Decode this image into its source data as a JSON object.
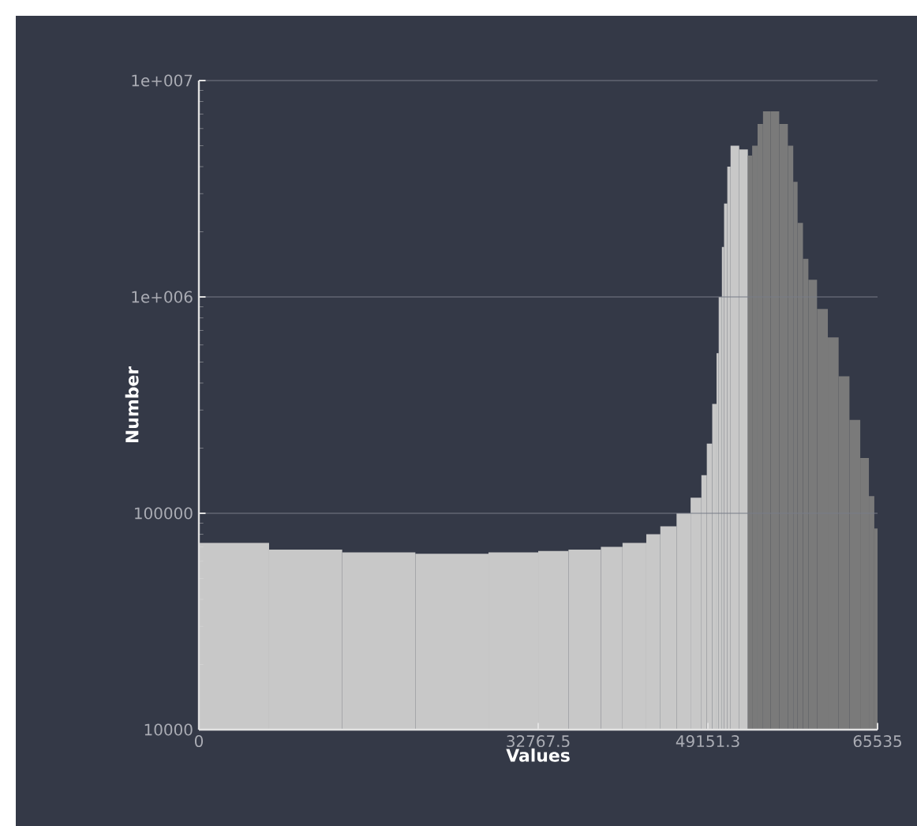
{
  "chart_data": {
    "type": "histogram",
    "xlabel": "Values",
    "ylabel": "Number",
    "bins": [
      0,
      6780,
      13842,
      20905,
      27967,
      32768,
      35690,
      38820,
      40908,
      43204,
      44560,
      46126,
      47482,
      48526,
      49048,
      49570,
      49986,
      50196,
      50505,
      50714,
      51027,
      51340,
      52175,
      53010,
      53427,
      53949,
      54473,
      55203,
      56038,
      56873,
      57395,
      57812,
      58334,
      58856,
      59691,
      60735,
      61778,
      62822,
      63865,
      64700,
      65222,
      65535
    ],
    "values": [
      73000,
      68000,
      66000,
      65000,
      66000,
      67000,
      68000,
      70000,
      73000,
      80000,
      87000,
      100000,
      118000,
      150000,
      210000,
      320000,
      550000,
      1000000,
      1700000,
      2700000,
      4000000,
      5000000,
      4800000,
      4500000,
      5000000,
      6300000,
      7200000,
      7200000,
      6300000,
      5000000,
      3400000,
      2200000,
      1500000,
      1200000,
      880000,
      650000,
      430000,
      270000,
      180000,
      120000,
      85000
    ],
    "colors": [
      "#c8c8c8",
      "#c8c8c8",
      "#c8c8c8",
      "#c8c8c8",
      "#c8c8c8",
      "#c8c8c8",
      "#c8c8c8",
      "#c8c8c8",
      "#c8c8c8",
      "#c8c8c8",
      "#c8c8c8",
      "#c8c8c8",
      "#c8c8c8",
      "#c8c8c8",
      "#c8c8c8",
      "#c8c8c8",
      "#c8c8c8",
      "#c8c8c8",
      "#c8c8c8",
      "#c8c8c8",
      "#c8c8c8",
      "#c8c8c8",
      "#c8c8c8",
      "#7a7a7a",
      "#7a7a7a",
      "#7a7a7a",
      "#7a7a7a",
      "#7a7a7a",
      "#7a7a7a",
      "#7a7a7a",
      "#7a7a7a",
      "#7a7a7a",
      "#7a7a7a",
      "#7a7a7a",
      "#7a7a7a",
      "#7a7a7a",
      "#7a7a7a",
      "#7a7a7a",
      "#7a7a7a",
      "#7a7a7a",
      "#7a7a7a"
    ],
    "xlim": [
      0,
      65535
    ],
    "xticks": [
      0,
      32767.5,
      49151.3,
      65535
    ],
    "ylim": [
      10000,
      10000000
    ],
    "yticks": [
      10000,
      100000,
      {
        "value": 1000000,
        "label": "1e+006"
      },
      {
        "value": 10000000,
        "label": "1e+007"
      }
    ],
    "log": true,
    "grid": "y"
  }
}
